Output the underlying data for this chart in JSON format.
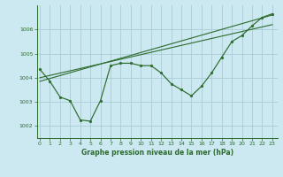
{
  "title": "Graphe pression niveau de la mer (hPa)",
  "bg_color": "#cce8f0",
  "grid_color": "#a8ccd8",
  "line_color": "#2d6b2d",
  "marker_color": "#2d6b2d",
  "xlim": [
    -0.3,
    23.5
  ],
  "ylim": [
    1001.5,
    1007.0
  ],
  "yticks": [
    1002,
    1003,
    1004,
    1005,
    1006
  ],
  "xticks": [
    0,
    1,
    2,
    3,
    4,
    5,
    6,
    7,
    8,
    9,
    10,
    11,
    12,
    13,
    14,
    15,
    16,
    17,
    18,
    19,
    20,
    21,
    22,
    23
  ],
  "main_line": [
    [
      0,
      1004.35
    ],
    [
      1,
      1003.85
    ],
    [
      2,
      1003.2
    ],
    [
      3,
      1003.05
    ],
    [
      4,
      1002.25
    ],
    [
      5,
      1002.2
    ],
    [
      6,
      1003.05
    ],
    [
      7,
      1004.5
    ],
    [
      8,
      1004.6
    ],
    [
      9,
      1004.6
    ],
    [
      10,
      1004.5
    ],
    [
      11,
      1004.5
    ],
    [
      12,
      1004.2
    ],
    [
      13,
      1003.75
    ],
    [
      14,
      1003.5
    ],
    [
      15,
      1003.25
    ],
    [
      16,
      1003.65
    ],
    [
      17,
      1004.2
    ],
    [
      18,
      1004.85
    ],
    [
      19,
      1005.5
    ],
    [
      20,
      1005.75
    ],
    [
      21,
      1006.15
    ],
    [
      22,
      1006.5
    ],
    [
      23,
      1006.65
    ]
  ],
  "trend_line1": [
    [
      0,
      1003.85
    ],
    [
      23,
      1006.6
    ]
  ],
  "trend_line2": [
    [
      0,
      1004.0
    ],
    [
      23,
      1006.2
    ]
  ]
}
